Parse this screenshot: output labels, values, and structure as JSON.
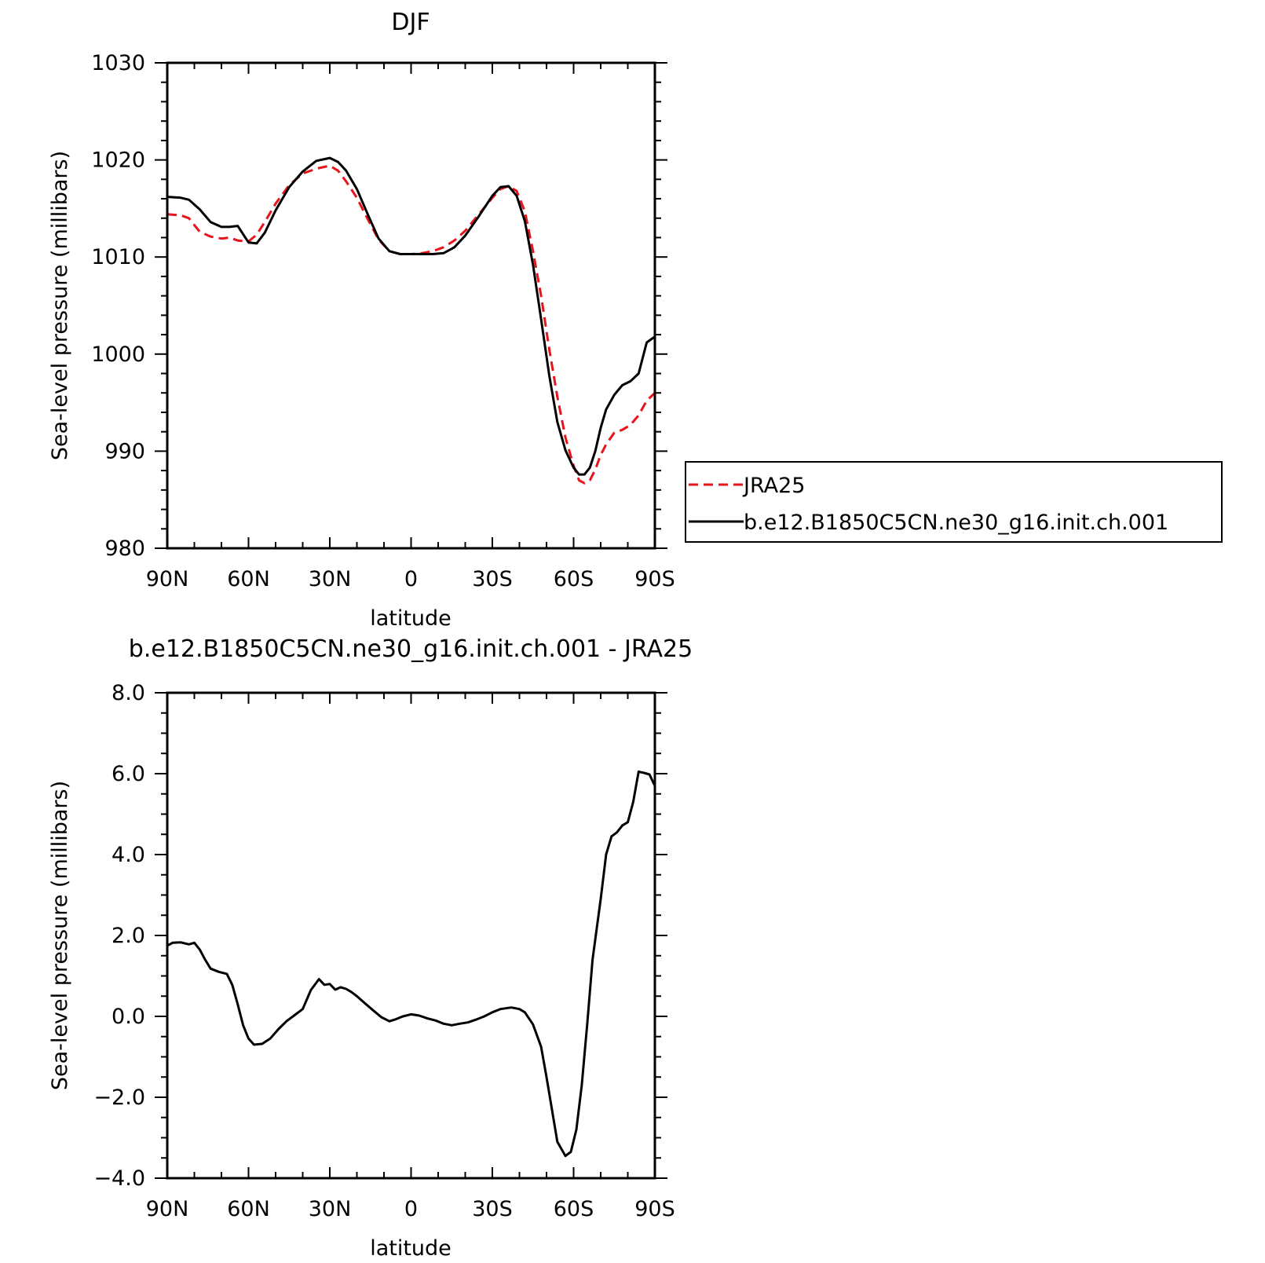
{
  "chart_data": [
    {
      "type": "line",
      "title": "DJF",
      "xlabel": "latitude",
      "ylabel": "Sea-level pressure (millibars)",
      "x_ticks": [
        90,
        60,
        30,
        0,
        -30,
        -60,
        -90
      ],
      "x_tick_labels": [
        "90N",
        "60N",
        "30N",
        "0",
        "30S",
        "60S",
        "90S"
      ],
      "xlim": [
        90,
        -90
      ],
      "ylim": [
        980,
        1030
      ],
      "y_ticks": [
        980,
        990,
        1000,
        1010,
        1020,
        1030
      ],
      "y_tick_labels": [
        "980",
        "990",
        "1000",
        "1010",
        "1020",
        "1030"
      ],
      "legend_position": "right",
      "series": [
        {
          "name": "JRA25",
          "color": "#e8141b",
          "dash": "dashed",
          "x": [
            90,
            85,
            82,
            78,
            74,
            70,
            67,
            64,
            60,
            57,
            54,
            50,
            45,
            40,
            35,
            30,
            27,
            24,
            20,
            16,
            12,
            8,
            4,
            0,
            -4,
            -8,
            -12,
            -16,
            -20,
            -25,
            -30,
            -33,
            -36,
            -39,
            -42,
            -45,
            -48,
            -51,
            -54,
            -57,
            -60,
            -62,
            -64,
            -66,
            -68,
            -70,
            -72,
            -75,
            -78,
            -81,
            -84,
            -87,
            -90
          ],
          "y": [
            1014.4,
            1014.3,
            1014.0,
            1012.6,
            1012.1,
            1011.9,
            1012.0,
            1011.7,
            1011.6,
            1012.3,
            1013.6,
            1015.5,
            1017.4,
            1018.6,
            1019.1,
            1019.4,
            1018.9,
            1017.8,
            1016.1,
            1013.9,
            1011.8,
            1010.6,
            1010.3,
            1010.3,
            1010.4,
            1010.6,
            1011.0,
            1011.7,
            1012.7,
            1014.4,
            1016.1,
            1017.0,
            1017.3,
            1016.8,
            1014.7,
            1010.6,
            1006.0,
            1000.5,
            995.6,
            991.4,
            988.5,
            987.0,
            986.7,
            987.0,
            988.1,
            989.6,
            990.7,
            991.9,
            992.2,
            992.7,
            993.7,
            995.2,
            996.0
          ]
        },
        {
          "name": "b.e12.B1850C5CN.ne30_g16.init.ch.001",
          "color": "#000000",
          "dash": "solid",
          "x": [
            90,
            85,
            82,
            78,
            74,
            70,
            67,
            64,
            60,
            57,
            54,
            50,
            45,
            40,
            35,
            30,
            27,
            24,
            20,
            16,
            12,
            8,
            4,
            0,
            -4,
            -8,
            -12,
            -16,
            -20,
            -25,
            -30,
            -33,
            -36,
            -39,
            -42,
            -45,
            -48,
            -51,
            -54,
            -57,
            -60,
            -62,
            -64,
            -66,
            -68,
            -70,
            -72,
            -75,
            -78,
            -81,
            -84,
            -87,
            -90
          ],
          "y": [
            1016.2,
            1016.1,
            1015.9,
            1014.9,
            1013.6,
            1013.1,
            1013.1,
            1013.2,
            1011.5,
            1011.4,
            1012.5,
            1014.8,
            1017.2,
            1018.8,
            1019.9,
            1020.2,
            1019.8,
            1018.9,
            1017.0,
            1014.4,
            1011.9,
            1010.6,
            1010.3,
            1010.3,
            1010.3,
            1010.3,
            1010.4,
            1011.0,
            1012.2,
            1014.2,
            1016.3,
            1017.2,
            1017.3,
            1016.3,
            1013.7,
            1009.2,
            1003.6,
            997.8,
            993.0,
            990.1,
            988.3,
            987.6,
            987.6,
            988.3,
            990.0,
            992.4,
            994.3,
            995.8,
            996.8,
            997.2,
            998.0,
            1001.2,
            1001.8
          ]
        }
      ]
    },
    {
      "type": "line",
      "title": "b.e12.B1850C5CN.ne30_g16.init.ch.001 - JRA25",
      "xlabel": "latitude",
      "ylabel": "Sea-level pressure (millibars)",
      "x_ticks": [
        90,
        60,
        30,
        0,
        -30,
        -60,
        -90
      ],
      "x_tick_labels": [
        "90N",
        "60N",
        "30N",
        "0",
        "30S",
        "60S",
        "90S"
      ],
      "xlim": [
        90,
        -90
      ],
      "ylim": [
        -4.0,
        8.0
      ],
      "y_ticks": [
        -4.0,
        -2.0,
        0.0,
        2.0,
        4.0,
        6.0,
        8.0
      ],
      "y_tick_labels": [
        "−4.0",
        "−2.0",
        "0.0",
        "2.0",
        "4.0",
        "6.0",
        "8.0"
      ],
      "series": [
        {
          "color": "#000000",
          "dash": "solid",
          "x": [
            90,
            88,
            85,
            82,
            80,
            78,
            76,
            74,
            71,
            68,
            66,
            64,
            62,
            60,
            58,
            55,
            52,
            49,
            46,
            43,
            40,
            37,
            34,
            32,
            30,
            28,
            26,
            24,
            22,
            20,
            17,
            14,
            11,
            8,
            6,
            3,
            0,
            -3,
            -6,
            -9,
            -12,
            -15,
            -18,
            -21,
            -24,
            -27,
            -30,
            -33,
            -35,
            -37,
            -40,
            -42,
            -45,
            -48,
            -50,
            -52,
            -54,
            -57,
            -59,
            -61,
            -63,
            -65,
            -67,
            -70,
            -72,
            -74,
            -76,
            -78,
            -80,
            -82,
            -84,
            -86,
            -88,
            -90
          ],
          "y": [
            1.75,
            1.82,
            1.83,
            1.78,
            1.82,
            1.65,
            1.4,
            1.18,
            1.1,
            1.05,
            0.78,
            0.3,
            -0.22,
            -0.55,
            -0.7,
            -0.68,
            -0.55,
            -0.32,
            -0.12,
            0.03,
            0.18,
            0.65,
            0.92,
            0.78,
            0.8,
            0.66,
            0.72,
            0.68,
            0.6,
            0.5,
            0.32,
            0.15,
            -0.02,
            -0.12,
            -0.08,
            0.0,
            0.05,
            0.02,
            -0.05,
            -0.1,
            -0.18,
            -0.22,
            -0.18,
            -0.15,
            -0.08,
            0.0,
            0.1,
            0.18,
            0.2,
            0.22,
            0.18,
            0.1,
            -0.2,
            -0.75,
            -1.5,
            -2.3,
            -3.1,
            -3.45,
            -3.35,
            -2.8,
            -1.7,
            -0.2,
            1.4,
            2.9,
            4.0,
            4.45,
            4.55,
            4.72,
            4.8,
            5.3,
            6.05,
            6.02,
            5.98,
            5.7
          ]
        }
      ]
    }
  ],
  "legend": {
    "items": [
      {
        "label": "JRA25",
        "color": "#e8141b",
        "dash": "dashed"
      },
      {
        "label": "b.e12.B1850C5CN.ne30_g16.init.ch.001",
        "color": "#000000",
        "dash": "solid"
      }
    ]
  }
}
